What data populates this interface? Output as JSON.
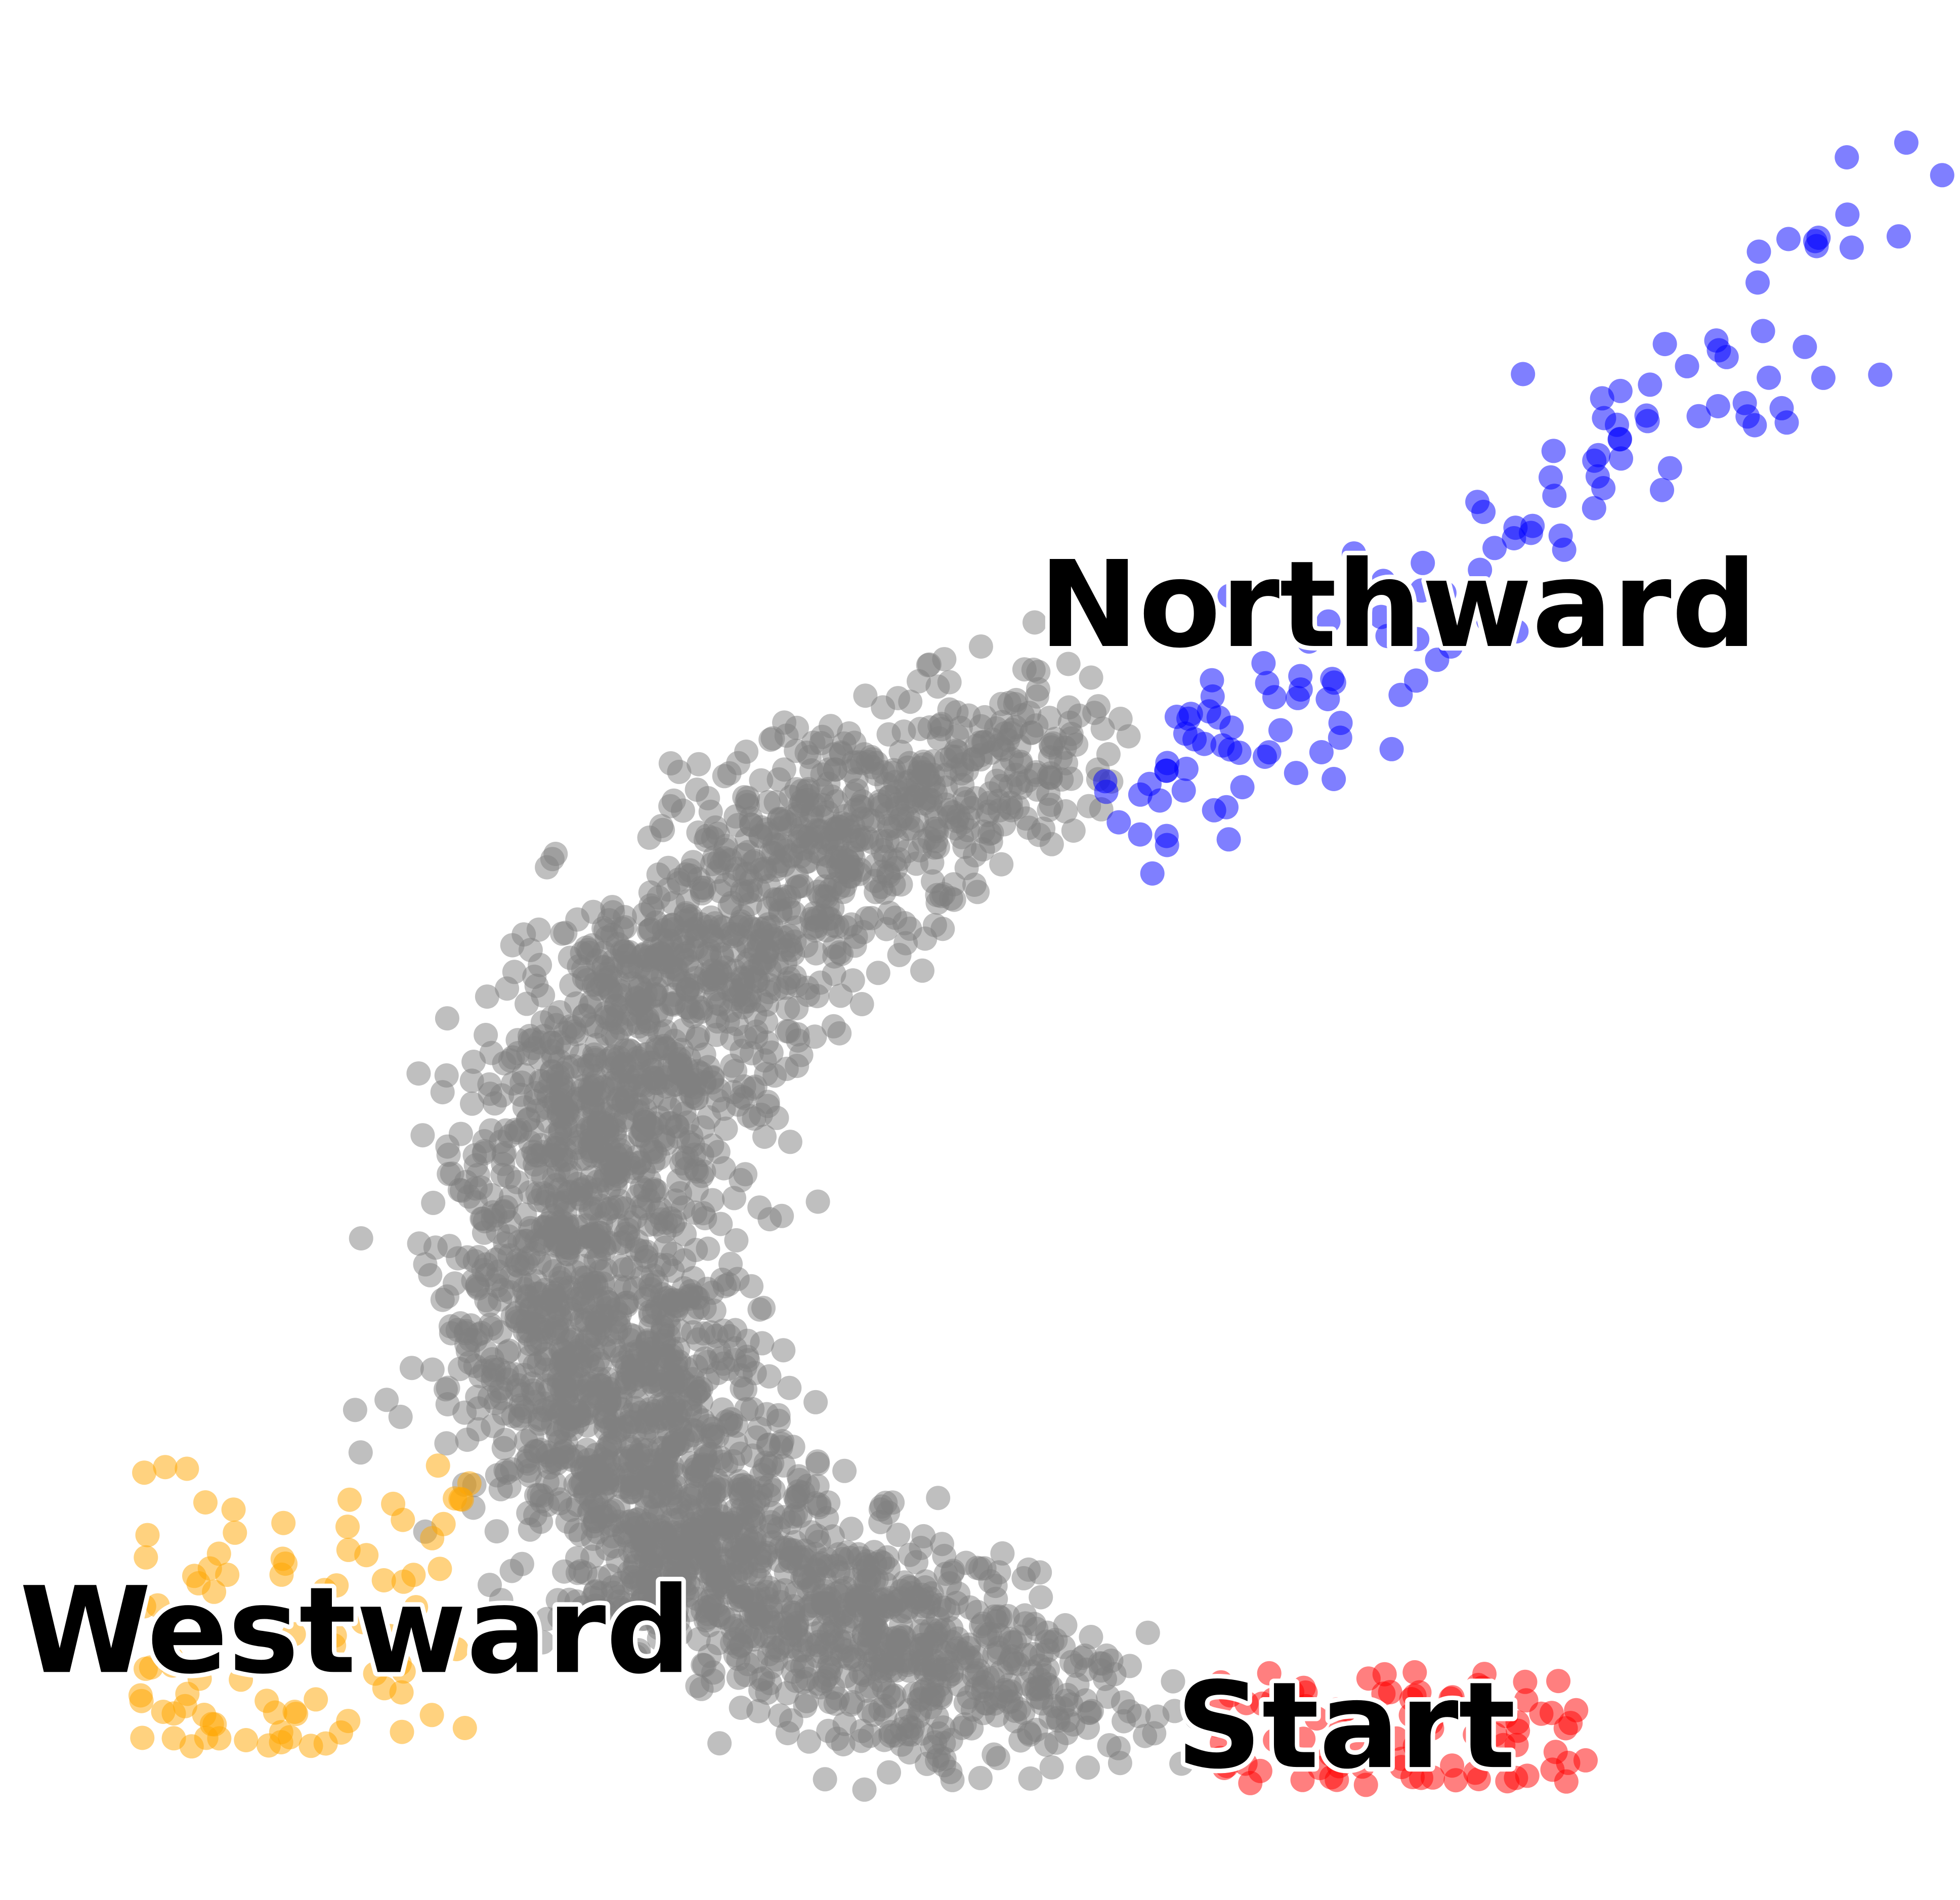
{
  "chart_data": {
    "type": "scatter",
    "title": "",
    "xlabel": "",
    "ylabel": "",
    "axes_visible": false,
    "grid": false,
    "legend": "none",
    "xlim": [
      0,
      100
    ],
    "ylim": [
      0,
      100
    ],
    "point_alpha": 0.5,
    "series": [
      {
        "key": "other",
        "color": "#808080",
        "point_count": 3200,
        "shape": "C-shaped band from lower-right to upper-right, bowing left",
        "centerline": [
          {
            "x": 61,
            "y": 9
          },
          {
            "x": 52,
            "y": 11
          },
          {
            "x": 44,
            "y": 14
          },
          {
            "x": 37,
            "y": 17
          },
          {
            "x": 33,
            "y": 21
          },
          {
            "x": 30,
            "y": 26
          },
          {
            "x": 29,
            "y": 32
          },
          {
            "x": 30,
            "y": 39
          },
          {
            "x": 32,
            "y": 45
          },
          {
            "x": 36,
            "y": 51
          },
          {
            "x": 43,
            "y": 56
          },
          {
            "x": 51,
            "y": 60
          },
          {
            "x": 58,
            "y": 64
          }
        ]
      },
      {
        "key": "start",
        "color": "#ff0000",
        "point_count": 90,
        "x_range": [
          62,
          81
        ],
        "y_range": [
          6,
          12
        ]
      },
      {
        "key": "westward",
        "color": "#ffa500",
        "point_count": 90,
        "x_range": [
          7,
          24
        ],
        "y_range": [
          8,
          23
        ]
      },
      {
        "key": "northward",
        "color": "#0000ff",
        "point_count": 130,
        "x_range": [
          60,
          97
        ],
        "y_range": [
          58,
          95
        ]
      }
    ],
    "annotations": [
      {
        "text": "Northward",
        "x": 53,
        "y": 66
      },
      {
        "text": "Westward",
        "x": 1,
        "y": 12
      },
      {
        "text": "Start",
        "x": 60,
        "y": 7
      }
    ]
  }
}
